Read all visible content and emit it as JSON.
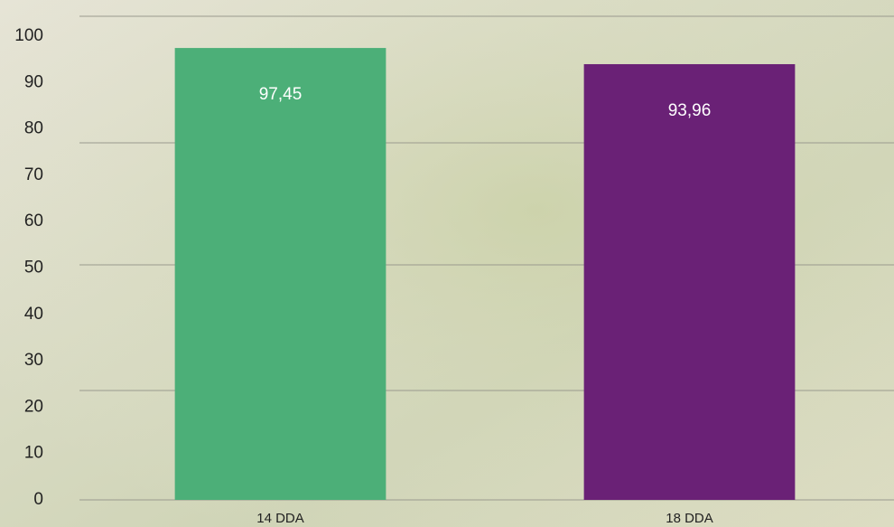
{
  "chart_data": {
    "type": "bar",
    "categories": [
      "14 DDA",
      "18 DDA"
    ],
    "series": [
      {
        "colors": [
          "#4caf78",
          "#6a2176"
        ],
        "values": [
          97.45,
          93.96
        ],
        "value_labels": [
          "97,45",
          "93,96"
        ]
      }
    ],
    "ylim": [
      0,
      100
    ],
    "yticks": [
      0,
      10,
      20,
      30,
      40,
      50,
      60,
      70,
      80,
      90,
      100
    ]
  }
}
